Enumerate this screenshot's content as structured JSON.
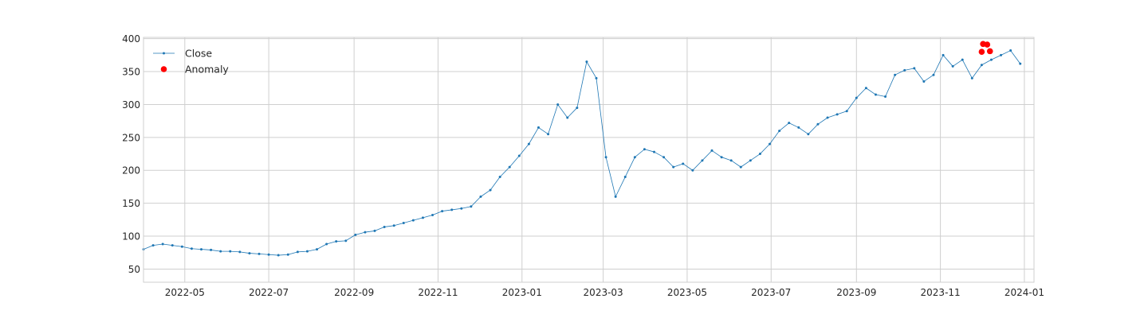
{
  "chart_data": {
    "type": "line",
    "title": "",
    "xlabel": "",
    "ylabel": "",
    "x_axis_type": "date",
    "xlim": [
      "2022-04-01",
      "2024-01-08"
    ],
    "ylim": [
      30,
      402
    ],
    "grid": true,
    "legend_position": "top-left",
    "x_ticks": [
      "2022-05",
      "2022-07",
      "2022-09",
      "2022-11",
      "2023-01",
      "2023-03",
      "2023-05",
      "2023-07",
      "2023-09",
      "2023-11",
      "2024-01"
    ],
    "y_ticks": [
      50,
      100,
      150,
      200,
      250,
      300,
      350,
      400
    ],
    "series": [
      {
        "name": "Close",
        "kind": "line-with-markers",
        "color": "#1f77b4",
        "points": [
          [
            "2022-04-01",
            80
          ],
          [
            "2022-04-08",
            86
          ],
          [
            "2022-04-15",
            88
          ],
          [
            "2022-04-22",
            86
          ],
          [
            "2022-04-29",
            84
          ],
          [
            "2022-05-06",
            81
          ],
          [
            "2022-05-13",
            80
          ],
          [
            "2022-05-20",
            79
          ],
          [
            "2022-05-27",
            77
          ],
          [
            "2022-06-03",
            77
          ],
          [
            "2022-06-10",
            76
          ],
          [
            "2022-06-17",
            74
          ],
          [
            "2022-06-24",
            73
          ],
          [
            "2022-07-01",
            72
          ],
          [
            "2022-07-08",
            71
          ],
          [
            "2022-07-15",
            72
          ],
          [
            "2022-07-22",
            76
          ],
          [
            "2022-07-29",
            77
          ],
          [
            "2022-08-05",
            80
          ],
          [
            "2022-08-12",
            88
          ],
          [
            "2022-08-19",
            92
          ],
          [
            "2022-08-26",
            93
          ],
          [
            "2022-09-02",
            102
          ],
          [
            "2022-09-09",
            106
          ],
          [
            "2022-09-16",
            108
          ],
          [
            "2022-09-23",
            114
          ],
          [
            "2022-09-30",
            116
          ],
          [
            "2022-10-07",
            120
          ],
          [
            "2022-10-14",
            124
          ],
          [
            "2022-10-21",
            128
          ],
          [
            "2022-10-28",
            132
          ],
          [
            "2022-11-04",
            138
          ],
          [
            "2022-11-11",
            140
          ],
          [
            "2022-11-18",
            142
          ],
          [
            "2022-11-25",
            145
          ],
          [
            "2022-12-02",
            160
          ],
          [
            "2022-12-09",
            170
          ],
          [
            "2022-12-16",
            190
          ],
          [
            "2022-12-23",
            205
          ],
          [
            "2022-12-30",
            222
          ],
          [
            "2023-01-06",
            240
          ],
          [
            "2023-01-13",
            265
          ],
          [
            "2023-01-20",
            255
          ],
          [
            "2023-01-27",
            300
          ],
          [
            "2023-02-03",
            280
          ],
          [
            "2023-02-10",
            295
          ],
          [
            "2023-02-17",
            365
          ],
          [
            "2023-02-24",
            340
          ],
          [
            "2023-03-03",
            220
          ],
          [
            "2023-03-10",
            160
          ],
          [
            "2023-03-17",
            190
          ],
          [
            "2023-03-24",
            220
          ],
          [
            "2023-03-31",
            232
          ],
          [
            "2023-04-07",
            228
          ],
          [
            "2023-04-14",
            220
          ],
          [
            "2023-04-21",
            205
          ],
          [
            "2023-04-28",
            210
          ],
          [
            "2023-05-05",
            200
          ],
          [
            "2023-05-12",
            215
          ],
          [
            "2023-05-19",
            230
          ],
          [
            "2023-05-26",
            220
          ],
          [
            "2023-06-02",
            215
          ],
          [
            "2023-06-09",
            205
          ],
          [
            "2023-06-16",
            215
          ],
          [
            "2023-06-23",
            225
          ],
          [
            "2023-06-30",
            240
          ],
          [
            "2023-07-07",
            260
          ],
          [
            "2023-07-14",
            272
          ],
          [
            "2023-07-21",
            265
          ],
          [
            "2023-07-28",
            255
          ],
          [
            "2023-08-04",
            270
          ],
          [
            "2023-08-11",
            280
          ],
          [
            "2023-08-18",
            285
          ],
          [
            "2023-08-25",
            290
          ],
          [
            "2023-09-01",
            310
          ],
          [
            "2023-09-08",
            325
          ],
          [
            "2023-09-15",
            315
          ],
          [
            "2023-09-22",
            312
          ],
          [
            "2023-09-29",
            345
          ],
          [
            "2023-10-06",
            352
          ],
          [
            "2023-10-13",
            355
          ],
          [
            "2023-10-20",
            335
          ],
          [
            "2023-10-27",
            345
          ],
          [
            "2023-11-03",
            375
          ],
          [
            "2023-11-10",
            358
          ],
          [
            "2023-11-17",
            368
          ],
          [
            "2023-11-24",
            340
          ],
          [
            "2023-12-01",
            360
          ],
          [
            "2023-12-08",
            368
          ],
          [
            "2023-12-15",
            375
          ],
          [
            "2023-12-22",
            382
          ],
          [
            "2023-12-29",
            362
          ]
        ]
      },
      {
        "name": "Anomaly",
        "kind": "scatter",
        "color": "#ff0000",
        "points": [
          [
            "2023-12-01",
            380
          ],
          [
            "2023-12-02",
            392
          ],
          [
            "2023-12-05",
            391
          ],
          [
            "2023-12-07",
            381
          ]
        ]
      }
    ]
  }
}
